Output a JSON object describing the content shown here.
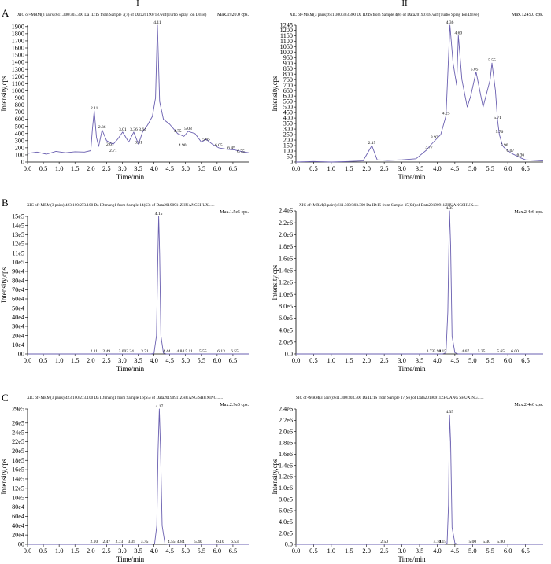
{
  "figure": {
    "column_labels": [
      "I",
      "II"
    ],
    "row_labels": [
      "A",
      "B",
      "C"
    ],
    "trace_color": "#6a5fb0"
  },
  "chart_data": [
    {
      "id": "A-I",
      "type": "line",
      "row": "A",
      "col": "I",
      "header": "XIC of+MRM(3 pairs):611.300/303.300 Da ID:IS from Sample 3(7) of Data20190718.wiff(Turbo Spray Ion Drive)",
      "max_label": "Max.1920.0 cps.",
      "xlabel": "Time/min",
      "ylabel": "Intensity,cps",
      "xlim": [
        0,
        7.0
      ],
      "ylim": [
        0,
        1920
      ],
      "xticks": [
        0.0,
        0.5,
        1.0,
        1.5,
        2.0,
        2.5,
        3.0,
        3.5,
        4.0,
        4.5,
        5.0,
        5.5,
        6.0,
        6.5
      ],
      "xtick_labels": [
        "0.0",
        "0.5",
        "1.0",
        "1.5",
        "2.0",
        "2.5",
        "3.0",
        "3.5",
        "4.0",
        "4.5",
        "5.0",
        "5.5",
        "6.0",
        "6.5"
      ],
      "yticks": [
        0,
        100,
        200,
        300,
        400,
        500,
        600,
        700,
        800,
        900,
        1000,
        1100,
        1200,
        1300,
        1400,
        1500,
        1600,
        1700,
        1800,
        1900
      ],
      "ytick_labels": [
        "0",
        "100",
        "200",
        "300",
        "400",
        "500",
        "600",
        "700",
        "800",
        "900",
        "1000",
        "1100",
        "1200",
        "1300",
        "1400",
        "1500",
        "1600",
        "1700",
        "1800",
        "1900"
      ],
      "x": [
        0.0,
        0.3,
        0.6,
        0.9,
        1.2,
        1.5,
        1.8,
        2.0,
        2.05,
        2.11,
        2.18,
        2.25,
        2.36,
        2.5,
        2.71,
        2.85,
        3.01,
        3.2,
        3.36,
        3.51,
        3.64,
        3.8,
        3.95,
        4.05,
        4.11,
        4.18,
        4.3,
        4.5,
        4.75,
        4.95,
        5.08,
        5.3,
        5.5,
        5.65,
        5.85,
        6.05,
        6.3,
        6.55,
        6.75,
        7.0
      ],
      "y": [
        120,
        140,
        110,
        150,
        130,
        145,
        140,
        160,
        450,
        720,
        350,
        220,
        450,
        300,
        250,
        320,
        420,
        280,
        420,
        250,
        420,
        520,
        640,
        900,
        1920,
        850,
        600,
        530,
        400,
        360,
        430,
        400,
        280,
        320,
        250,
        200,
        180,
        170,
        150,
        130
      ],
      "annotations": [
        {
          "x": 2.11,
          "y": 720,
          "label": "2.11"
        },
        {
          "x": 2.36,
          "y": 450,
          "label": "2.36"
        },
        {
          "x": 2.61,
          "y": 210,
          "label": "2.61"
        },
        {
          "x": 2.71,
          "y": 120,
          "label": "2.71"
        },
        {
          "x": 3.01,
          "y": 420,
          "label": "3.01"
        },
        {
          "x": 3.36,
          "y": 420,
          "label": "3.36"
        },
        {
          "x": 3.51,
          "y": 240,
          "label": "3.51"
        },
        {
          "x": 3.64,
          "y": 420,
          "label": "3.64"
        },
        {
          "x": 4.11,
          "y": 1920,
          "label": "4.11"
        },
        {
          "x": 4.75,
          "y": 400,
          "label": "4.75"
        },
        {
          "x": 4.9,
          "y": 200,
          "label": "4.90"
        },
        {
          "x": 5.08,
          "y": 430,
          "label": "5.08"
        },
        {
          "x": 5.65,
          "y": 280,
          "label": "5.65"
        },
        {
          "x": 6.05,
          "y": 200,
          "label": "6.05"
        },
        {
          "x": 6.45,
          "y": 160,
          "label": "6.45"
        },
        {
          "x": 6.75,
          "y": 110,
          "label": "6.75"
        }
      ]
    },
    {
      "id": "A-II",
      "type": "line",
      "row": "A",
      "col": "II",
      "header": "XIC of+MRM(3 pairs):611.300/303.300 Da ID:IS from Sample 4(8) of Data20190718.wiff(Turbo Spray Ion Drive)",
      "max_label": "Max.1245.0 cps.",
      "xlabel": "Time/min",
      "ylabel": "Intensity,cps",
      "xlim": [
        0,
        7.0
      ],
      "ylim": [
        0,
        1245
      ],
      "xticks": [
        0.0,
        0.5,
        1.0,
        1.5,
        2.0,
        2.5,
        3.0,
        3.5,
        4.0,
        4.5,
        5.0,
        5.5,
        6.0,
        6.5
      ],
      "xtick_labels": [
        "0.0",
        "0.5",
        "1.0",
        "1.5",
        "2.0",
        "2.5",
        "3.0",
        "3.5",
        "4.0",
        "4.5",
        "5.0",
        "5.5",
        "6.0",
        "6.5"
      ],
      "yticks": [
        0,
        50,
        100,
        150,
        200,
        250,
        300,
        350,
        400,
        450,
        500,
        550,
        600,
        650,
        700,
        750,
        800,
        850,
        900,
        950,
        1000,
        1050,
        1100,
        1150,
        1200,
        1245
      ],
      "ytick_labels": [
        "0",
        "50",
        "100",
        "150",
        "200",
        "250",
        "300",
        "350",
        "400",
        "450",
        "500",
        "550",
        "600",
        "650",
        "700",
        "750",
        "800",
        "850",
        "900",
        "950",
        "1000",
        "1050",
        "1100",
        "1150",
        "1200",
        "1245"
      ],
      "x": [
        0.0,
        0.5,
        1.0,
        1.5,
        1.9,
        2.15,
        2.3,
        2.6,
        3.0,
        3.4,
        3.7,
        3.8,
        3.95,
        4.1,
        4.25,
        4.36,
        4.45,
        4.55,
        4.6,
        4.7,
        4.85,
        4.95,
        5.1,
        5.3,
        5.5,
        5.55,
        5.65,
        5.71,
        5.76,
        5.85,
        5.9,
        6.1,
        6.35,
        6.5,
        7.0
      ],
      "y": [
        0,
        5,
        0,
        5,
        10,
        150,
        20,
        15,
        20,
        30,
        110,
        150,
        200,
        250,
        420,
        1245,
        900,
        700,
        1150,
        750,
        500,
        600,
        820,
        500,
        750,
        900,
        650,
        380,
        250,
        150,
        130,
        80,
        40,
        20,
        10
      ],
      "annotations": [
        {
          "x": 2.15,
          "y": 150,
          "label": "2.15"
        },
        {
          "x": 3.77,
          "y": 110,
          "label": "3.77"
        },
        {
          "x": 3.92,
          "y": 200,
          "label": "3.92"
        },
        {
          "x": 4.25,
          "y": 420,
          "label": "4.25"
        },
        {
          "x": 4.36,
          "y": 1245,
          "label": "4.36"
        },
        {
          "x": 4.6,
          "y": 1150,
          "label": "4.60"
        },
        {
          "x": 5.05,
          "y": 820,
          "label": "5.05"
        },
        {
          "x": 5.55,
          "y": 900,
          "label": "5.55"
        },
        {
          "x": 5.71,
          "y": 380,
          "label": "5.71"
        },
        {
          "x": 5.76,
          "y": 250,
          "label": "5.76"
        },
        {
          "x": 5.9,
          "y": 130,
          "label": "5.90"
        },
        {
          "x": 6.07,
          "y": 80,
          "label": "6.07"
        },
        {
          "x": 6.36,
          "y": 40,
          "label": "6.36"
        }
      ]
    },
    {
      "id": "B-I",
      "type": "line",
      "row": "B",
      "col": "I",
      "header": "XIC of+MRM(3 pairs):423.100/273.100 Da ID:mang1 from Sample 14(S3) of Data20190911ZHUANGSHUX......",
      "max_label": "Max.1.5e5 cps.",
      "xlabel": "Time/min",
      "ylabel": "Intensity,cps",
      "xlim": [
        0,
        7.0
      ],
      "ylim": [
        0,
        150000
      ],
      "xticks": [
        0.0,
        0.5,
        1.0,
        1.5,
        2.0,
        2.5,
        3.0,
        3.5,
        4.0,
        4.5,
        5.0,
        5.5,
        6.0,
        6.5
      ],
      "xtick_labels": [
        "0.0",
        "0.5",
        "1.0",
        "1.5",
        "2.0",
        "2.5",
        "3.0",
        "3.5",
        "4.0",
        "4.5",
        "5.0",
        "5.5",
        "6.0",
        "6.5"
      ],
      "yticks": [
        0,
        10000,
        20000,
        30000,
        40000,
        50000,
        60000,
        70000,
        80000,
        90000,
        100000,
        110000,
        120000,
        130000,
        140000,
        150000
      ],
      "ytick_labels": [
        "00",
        "10e4",
        "20e4",
        "30e4",
        "40e4",
        "50e4",
        "60e4",
        "70e4",
        "80e4",
        "90e4",
        "10e5",
        "11e5",
        "12e5",
        "13e5",
        "14e5",
        "15e5"
      ],
      "x": [
        0.0,
        2.0,
        3.9,
        4.0,
        4.08,
        4.12,
        4.15,
        4.18,
        4.22,
        4.3,
        4.4,
        7.0
      ],
      "y": [
        0,
        0,
        0,
        500,
        20000,
        100000,
        150000,
        110000,
        20000,
        1000,
        0,
        0
      ],
      "annotations": [
        {
          "x": 4.15,
          "y": 150000,
          "label": "4.15"
        },
        {
          "x": 2.1,
          "y": 0,
          "label": "2.11"
        },
        {
          "x": 2.5,
          "y": 0,
          "label": "2.49"
        },
        {
          "x": 3.0,
          "y": 0,
          "label": "3.00"
        },
        {
          "x": 3.24,
          "y": 0,
          "label": "3.24"
        },
        {
          "x": 3.71,
          "y": 0,
          "label": "3.71"
        },
        {
          "x": 4.4,
          "y": 0,
          "label": "4.44"
        },
        {
          "x": 4.84,
          "y": 0,
          "label": "4.84"
        },
        {
          "x": 5.11,
          "y": 0,
          "label": "5.11"
        },
        {
          "x": 5.55,
          "y": 0,
          "label": "5.55"
        },
        {
          "x": 6.13,
          "y": 0,
          "label": "6.13"
        },
        {
          "x": 6.55,
          "y": 0,
          "label": "6.55"
        }
      ]
    },
    {
      "id": "B-II",
      "type": "line",
      "row": "B",
      "col": "II",
      "header": "XIC of+MRM(3 pairs):611.300/303.300 Da ID:IS from Sample 15(S4) of Data20190911ZHUANGSHUX......",
      "max_label": "Max.2.4e6 cps.",
      "xlabel": "Time/min",
      "ylabel": "Intensity,cps",
      "xlim": [
        0,
        7.0
      ],
      "ylim": [
        0,
        2400000
      ],
      "xticks": [
        0.0,
        0.5,
        1.0,
        1.5,
        2.0,
        2.5,
        3.0,
        3.5,
        4.0,
        4.5,
        5.0,
        5.5,
        6.0,
        6.5
      ],
      "xtick_labels": [
        "0.0",
        "0.5",
        "1.0",
        "1.5",
        "2.0",
        "2.5",
        "3.0",
        "3.5",
        "4.0",
        "4.5",
        "5.0",
        "5.5",
        "6.0",
        "6.5"
      ],
      "yticks": [
        0,
        200000,
        400000,
        600000,
        800000,
        1000000,
        1200000,
        1400000,
        1600000,
        1800000,
        2000000,
        2200000,
        2400000
      ],
      "ytick_labels": [
        "0.0",
        "2.0e5",
        "4.0e5",
        "6.0e5",
        "8.0e5",
        "1.0e6",
        "1.2e6",
        "1.4e6",
        "1.6e6",
        "1.8e6",
        "2.0e6",
        "2.2e6",
        "2.4e6"
      ],
      "x": [
        0.0,
        3.5,
        4.15,
        4.25,
        4.3,
        4.35,
        4.38,
        4.42,
        4.5,
        4.6,
        7.0
      ],
      "y": [
        0,
        0,
        0,
        20000,
        700000,
        2400000,
        1800000,
        300000,
        20000,
        0,
        0
      ],
      "annotations": [
        {
          "x": 4.35,
          "y": 2400000,
          "label": "4.35"
        },
        {
          "x": 3.8,
          "y": 0,
          "label": "3.73"
        },
        {
          "x": 4.0,
          "y": 0,
          "label": "3.98"
        },
        {
          "x": 4.15,
          "y": 0,
          "label": "4.15"
        },
        {
          "x": 4.8,
          "y": 0,
          "label": "4.67"
        },
        {
          "x": 5.25,
          "y": 0,
          "label": "5.25"
        },
        {
          "x": 5.8,
          "y": 0,
          "label": "5.65"
        },
        {
          "x": 6.2,
          "y": 0,
          "label": "6.00"
        }
      ]
    },
    {
      "id": "C-I",
      "type": "line",
      "row": "C",
      "col": "I",
      "header": "XIC of+MRM(3 pairs):423.100/273.100 Da ID:mang1 from Sample 16(S5) of Data20190911ZHUANG SHUXING......",
      "max_label": "Max.2.9e5 cps.",
      "xlabel": "Time/min",
      "ylabel": "Intensity,cps",
      "xlim": [
        0,
        7.0
      ],
      "ylim": [
        0,
        290000
      ],
      "xticks": [
        0.0,
        0.5,
        1.0,
        1.5,
        2.0,
        2.5,
        3.0,
        3.5,
        4.0,
        4.5,
        5.0,
        5.5,
        6.0,
        6.5
      ],
      "xtick_labels": [
        "0.0",
        "0.5",
        "1.0",
        "1.5",
        "2.0",
        "2.5",
        "3.0",
        "3.5",
        "4.0",
        "4.5",
        "5.0",
        "5.5",
        "6.0",
        "6.5"
      ],
      "yticks": [
        0,
        20000,
        40000,
        60000,
        80000,
        100000,
        120000,
        140000,
        160000,
        180000,
        200000,
        220000,
        240000,
        260000,
        290000
      ],
      "ytick_labels": [
        "00",
        "20e4",
        "40e4",
        "60e4",
        "80e4",
        "10e5",
        "12e5",
        "14e5",
        "16e5",
        "18e5",
        "20e5",
        "22e5",
        "24e5",
        "26e5",
        "29e5"
      ],
      "x": [
        0.0,
        2.0,
        3.9,
        4.02,
        4.09,
        4.13,
        4.17,
        4.21,
        4.26,
        4.35,
        4.45,
        7.0
      ],
      "y": [
        0,
        0,
        0,
        1000,
        40000,
        200000,
        290000,
        200000,
        40000,
        1000,
        0,
        0
      ],
      "annotations": [
        {
          "x": 4.17,
          "y": 290000,
          "label": "4.17"
        },
        {
          "x": 2.1,
          "y": 0,
          "label": "2.10"
        },
        {
          "x": 2.5,
          "y": 0,
          "label": "2.47"
        },
        {
          "x": 2.9,
          "y": 0,
          "label": "2.73"
        },
        {
          "x": 3.3,
          "y": 0,
          "label": "3.39"
        },
        {
          "x": 3.7,
          "y": 0,
          "label": "3.75"
        },
        {
          "x": 4.55,
          "y": 0,
          "label": "4.55"
        },
        {
          "x": 4.85,
          "y": 0,
          "label": "4.84"
        },
        {
          "x": 5.4,
          "y": 0,
          "label": "5.40"
        },
        {
          "x": 6.1,
          "y": 0,
          "label": "6.10"
        },
        {
          "x": 6.55,
          "y": 0,
          "label": "6.53"
        }
      ]
    },
    {
      "id": "C-II",
      "type": "line",
      "row": "C",
      "col": "II",
      "header": "SIC of+MRM(3 pairs):611.300/303.300 Da ID:IS from Sample 17(S6) of Data20190911ZHUANG SHUXING......",
      "max_label": "Max.2.4e6 cps.",
      "xlabel": "Time/min",
      "ylabel": "Intensity,cps",
      "xlim": [
        0,
        7.0
      ],
      "ylim": [
        0,
        2400000
      ],
      "xticks": [
        0.0,
        0.5,
        1.0,
        1.5,
        2.0,
        2.5,
        3.0,
        3.5,
        4.0,
        4.5,
        5.0,
        5.5,
        6.0,
        6.5
      ],
      "xtick_labels": [
        "0.0",
        "0.5",
        "1.0",
        "1.5",
        "2.0",
        "2.5",
        "3.0",
        "3.5",
        "4.0",
        "4.5",
        "5.0",
        "5.5",
        "6.0",
        "6.5"
      ],
      "yticks": [
        0,
        200000,
        400000,
        600000,
        800000,
        1000000,
        1200000,
        1400000,
        1600000,
        1800000,
        2000000,
        2200000,
        2400000
      ],
      "ytick_labels": [
        "0.0",
        "2.0e5",
        "4.0e5",
        "6.0e5",
        "8.0e5",
        "1.0e6",
        "1.2e6",
        "1.4e6",
        "1.6e6",
        "1.8e6",
        "2.0e6",
        "2.2e6",
        "2.4e6"
      ],
      "x": [
        0.0,
        3.5,
        4.2,
        4.28,
        4.32,
        4.35,
        4.38,
        4.42,
        4.5,
        4.6,
        7.0
      ],
      "y": [
        0,
        0,
        0,
        20000,
        700000,
        2300000,
        1800000,
        300000,
        20000,
        0,
        0
      ],
      "annotations": [
        {
          "x": 4.35,
          "y": 2300000,
          "label": "4.35"
        },
        {
          "x": 2.5,
          "y": 0,
          "label": "2.50"
        },
        {
          "x": 4.0,
          "y": 0,
          "label": "4.10"
        },
        {
          "x": 4.15,
          "y": 0,
          "label": "4.15"
        },
        {
          "x": 5.0,
          "y": 0,
          "label": "5.00"
        },
        {
          "x": 5.4,
          "y": 0,
          "label": "5.30"
        },
        {
          "x": 5.8,
          "y": 0,
          "label": "5.80"
        }
      ]
    }
  ]
}
